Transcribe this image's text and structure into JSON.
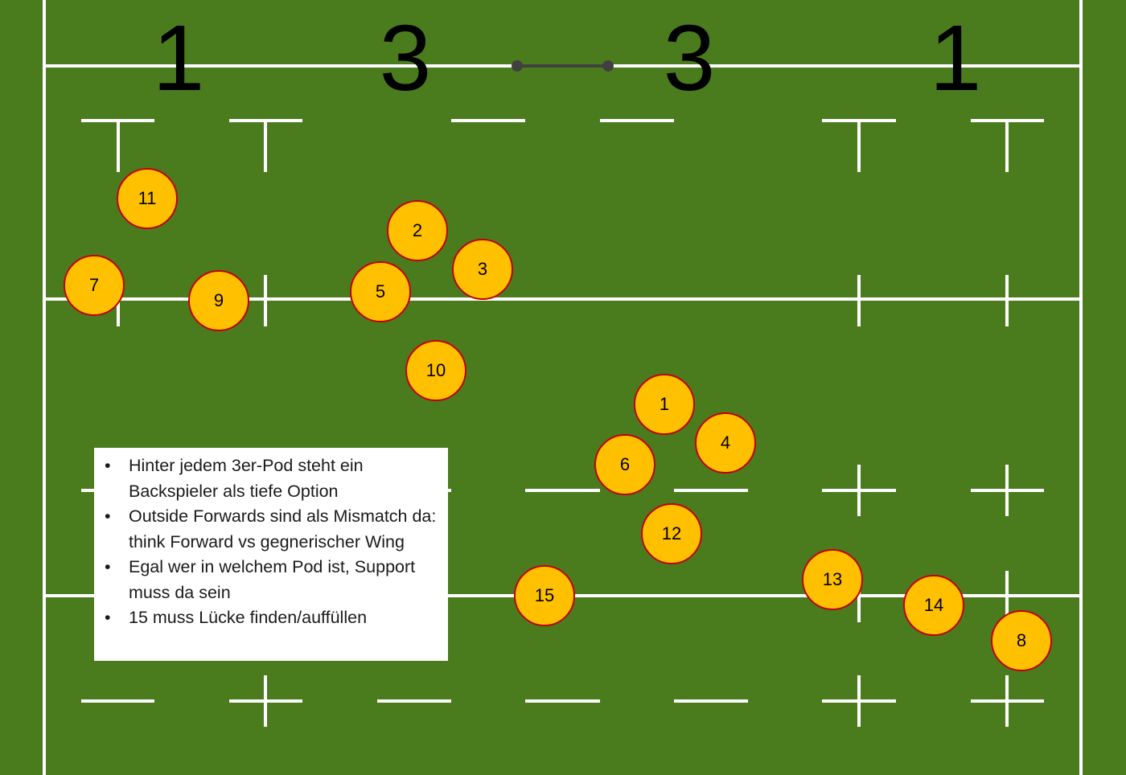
{
  "formation": [
    "1",
    "3",
    "3",
    "1"
  ],
  "players": [
    {
      "number": "11"
    },
    {
      "number": "2"
    },
    {
      "number": "3"
    },
    {
      "number": "7"
    },
    {
      "number": "9"
    },
    {
      "number": "5"
    },
    {
      "number": "10"
    },
    {
      "number": "1"
    },
    {
      "number": "4"
    },
    {
      "number": "6"
    },
    {
      "number": "12"
    },
    {
      "number": "15"
    },
    {
      "number": "13"
    },
    {
      "number": "14"
    },
    {
      "number": "8"
    }
  ],
  "notes": [
    "Hinter jedem 3er-Pod steht ein Backspieler als tiefe Option",
    "Outside Forwards sind als Mismatch da: think Forward vs gegnerischer Wing",
    "Egal wer in welchem Pod ist, Support muss da sein",
    "15 muss Lücke finden/auffüllen"
  ],
  "colors": {
    "pitch": "#4a7c1e",
    "lines": "#ffffff",
    "player_fill": "#ffc000",
    "player_border": "#c00000",
    "connector": "#404040"
  }
}
